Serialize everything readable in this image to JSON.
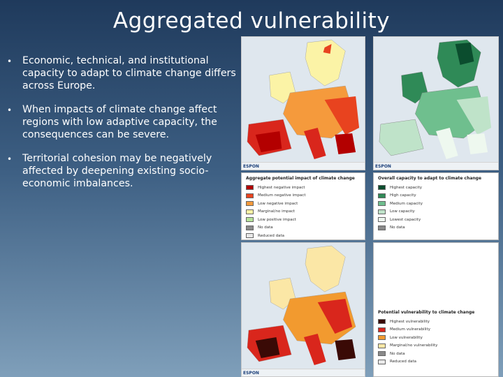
{
  "slide": {
    "title": "Aggregated vulnerability",
    "bullets": [
      "Economic, technical, and institutional capacity to adapt to climate change differs across Europe.",
      "When impacts of climate change affect regions with low adaptive capacity, the consequences can be severe.",
      "Territorial cohesion may be negatively affected by deepening existing socio-economic imbalances."
    ],
    "bullet_marker": "•"
  },
  "maps": {
    "brand": "ESPON",
    "impact_legend": {
      "title": "Aggregate potential impact of climate change",
      "items": [
        {
          "label": "Highest negative impact",
          "color": "#b30000"
        },
        {
          "label": "Medium negative impact",
          "color": "#e8431f"
        },
        {
          "label": "Low negative impact",
          "color": "#f59a3c"
        },
        {
          "label": "Marginal/no impact",
          "color": "#fbf3a6"
        },
        {
          "label": "Low positive impact",
          "color": "#b6e39a"
        },
        {
          "label": "No data",
          "color": "#8a8a8a"
        },
        {
          "label": "Reduced data",
          "color": "#e9e9e9"
        }
      ]
    },
    "capacity_legend": {
      "title": "Overall capacity to adapt to climate change",
      "items": [
        {
          "label": "Highest capacity",
          "color": "#0b4d2e"
        },
        {
          "label": "High capacity",
          "color": "#2f8a57"
        },
        {
          "label": "Medium capacity",
          "color": "#6fbf8e"
        },
        {
          "label": "Low capacity",
          "color": "#bfe3c9"
        },
        {
          "label": "Lowest capacity",
          "color": "#eef8ef"
        },
        {
          "label": "No data",
          "color": "#8a8a8a"
        }
      ]
    },
    "vulnerability_legend": {
      "title": "Potential vulnerability to climate change",
      "items": [
        {
          "label": "Highest vulnerability",
          "color": "#3a0a06"
        },
        {
          "label": "Medium vulnerability",
          "color": "#d9261c"
        },
        {
          "label": "Low vulnerability",
          "color": "#f29a2f"
        },
        {
          "label": "Marginal/no vulnerability",
          "color": "#fbe7a6"
        },
        {
          "label": "No data",
          "color": "#8a8a8a"
        },
        {
          "label": "Reduced data",
          "color": "#e9e9e9"
        }
      ]
    }
  }
}
